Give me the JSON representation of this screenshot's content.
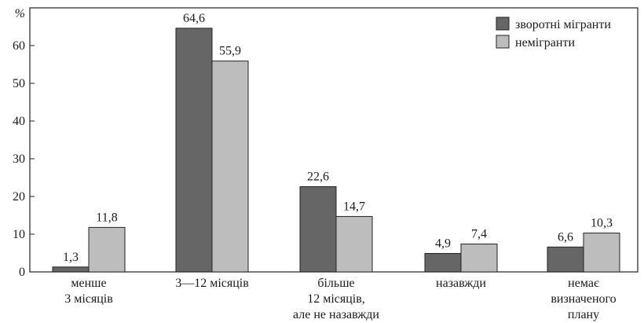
{
  "chart_data": {
    "type": "bar",
    "y_unit": "%",
    "ylim": [
      0,
      70
    ],
    "yticks": [
      0,
      10,
      20,
      30,
      40,
      50,
      60
    ],
    "grid": false,
    "legend_position": "top-right",
    "categories": [
      [
        "менше",
        "3 місяців"
      ],
      [
        "3—12 місяців"
      ],
      [
        "більше",
        "12 місяців,",
        "але не назавжди"
      ],
      [
        "назавжди"
      ],
      [
        "немає",
        "визначеного",
        "плану"
      ]
    ],
    "series": [
      {
        "name": "зворотні мігранти",
        "color": "#666666",
        "values": [
          1.3,
          64.6,
          22.6,
          4.9,
          6.6
        ],
        "labels": [
          "1,3",
          "64,6",
          "22,6",
          "4,9",
          "6,6"
        ]
      },
      {
        "name": "немігранти",
        "color": "#bdbdbd",
        "values": [
          11.8,
          55.9,
          14.7,
          7.4,
          10.3
        ],
        "labels": [
          "11,8",
          "55,9",
          "14,7",
          "7,4",
          "10,3"
        ]
      }
    ]
  }
}
